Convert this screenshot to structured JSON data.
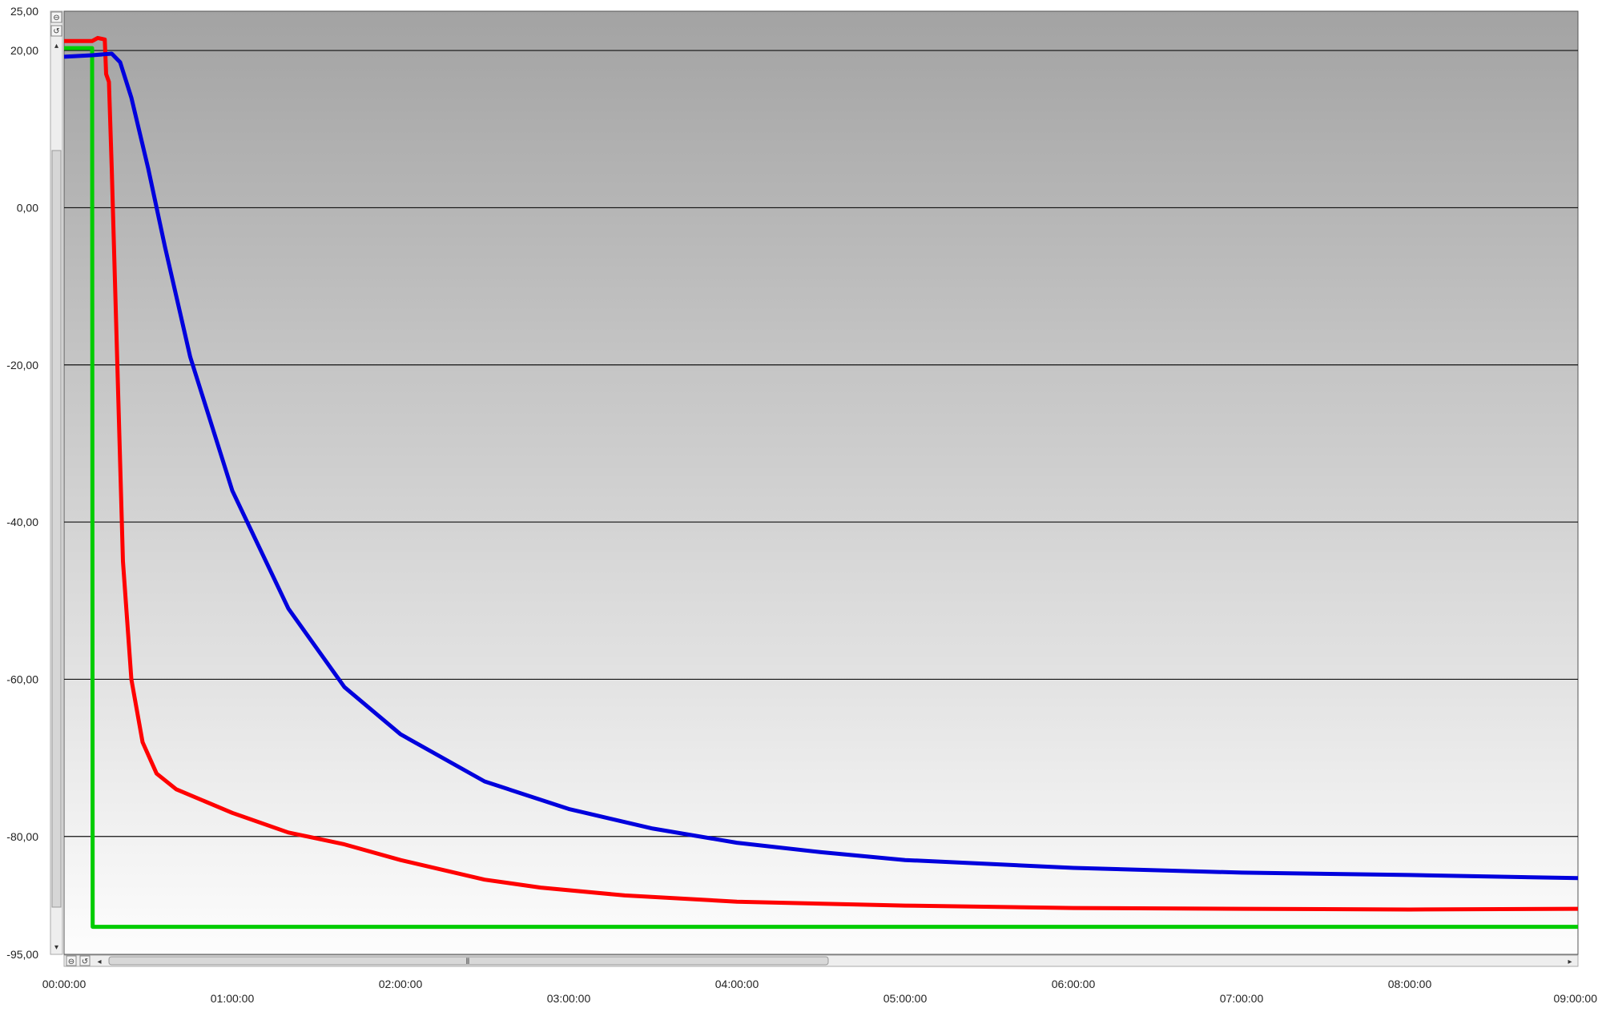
{
  "chart_data": {
    "type": "line",
    "xlim": [
      "00:00:00",
      "09:00:00"
    ],
    "ylim": [
      -95,
      25
    ],
    "x_ticks": [
      {
        "label": "00:00:00",
        "minutes": 0
      },
      {
        "label": "01:00:00",
        "minutes": 60
      },
      {
        "label": "02:00:00",
        "minutes": 120
      },
      {
        "label": "03:00:00",
        "minutes": 180
      },
      {
        "label": "04:00:00",
        "minutes": 240
      },
      {
        "label": "05:00:00",
        "minutes": 300
      },
      {
        "label": "06:00:00",
        "minutes": 360
      },
      {
        "label": "07:00:00",
        "minutes": 420
      },
      {
        "label": "08:00:00",
        "minutes": 480
      },
      {
        "label": "09:00:00",
        "minutes": 540
      }
    ],
    "y_ticks": [
      {
        "label": "25,00",
        "value": 25
      },
      {
        "label": "20,00",
        "value": 20
      },
      {
        "label": "0,00",
        "value": 0
      },
      {
        "label": "-20,00",
        "value": -20
      },
      {
        "label": "-40,00",
        "value": -40
      },
      {
        "label": "-60,00",
        "value": -60
      },
      {
        "label": "-80,00",
        "value": -80
      },
      {
        "label": "-95,00",
        "value": -95
      }
    ],
    "grid": true,
    "x_unit": "minutes",
    "series": [
      {
        "color": "#00cc00",
        "points": [
          [
            0,
            20.3
          ],
          [
            10,
            20.3
          ],
          [
            10.2,
            -91.5
          ],
          [
            540,
            -91.5
          ]
        ]
      },
      {
        "color": "#ff0000",
        "points": [
          [
            0,
            21.2
          ],
          [
            10,
            21.2
          ],
          [
            12,
            21.6
          ],
          [
            14.5,
            21.4
          ],
          [
            15,
            17
          ],
          [
            16,
            16
          ],
          [
            17,
            5
          ],
          [
            19,
            -20
          ],
          [
            21,
            -45
          ],
          [
            24,
            -60
          ],
          [
            28,
            -68
          ],
          [
            33,
            -72
          ],
          [
            40,
            -74
          ],
          [
            60,
            -77
          ],
          [
            80,
            -79.5
          ],
          [
            100,
            -81
          ],
          [
            120,
            -83
          ],
          [
            150,
            -85.5
          ],
          [
            170,
            -86.5
          ],
          [
            200,
            -87.5
          ],
          [
            240,
            -88.3
          ],
          [
            300,
            -88.8
          ],
          [
            360,
            -89.1
          ],
          [
            420,
            -89.2
          ],
          [
            480,
            -89.3
          ],
          [
            540,
            -89.2
          ]
        ]
      },
      {
        "color": "#0000dd",
        "points": [
          [
            0,
            19.2
          ],
          [
            10,
            19.4
          ],
          [
            17,
            19.6
          ],
          [
            20,
            18.5
          ],
          [
            24,
            14
          ],
          [
            30,
            5
          ],
          [
            36,
            -5
          ],
          [
            45,
            -19
          ],
          [
            60,
            -36
          ],
          [
            80,
            -51
          ],
          [
            100,
            -61
          ],
          [
            120,
            -67
          ],
          [
            150,
            -73
          ],
          [
            180,
            -76.5
          ],
          [
            210,
            -79
          ],
          [
            240,
            -80.8
          ],
          [
            270,
            -82
          ],
          [
            300,
            -83
          ],
          [
            360,
            -84
          ],
          [
            420,
            -84.6
          ],
          [
            480,
            -84.9
          ],
          [
            540,
            -85.3
          ]
        ]
      }
    ]
  }
}
